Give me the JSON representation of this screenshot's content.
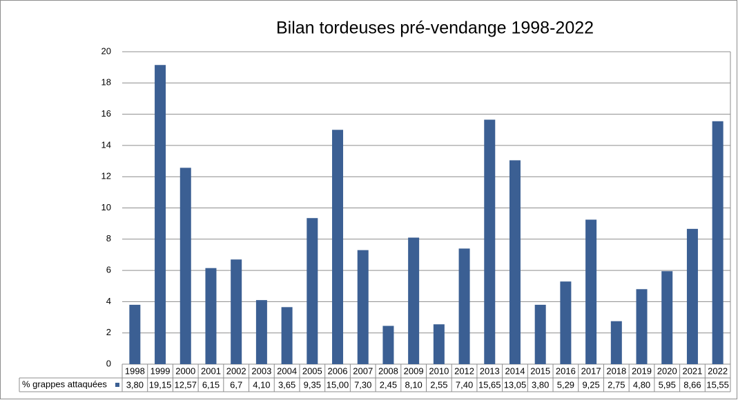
{
  "chart_data": {
    "type": "bar",
    "title": "Bilan tordeuses pré-vendange 1998-2022",
    "categories": [
      "1998",
      "1999",
      "2000",
      "2001",
      "2002",
      "2003",
      "2004",
      "2005",
      "2006",
      "2007",
      "2008",
      "2009",
      "2010",
      "2012",
      "2013",
      "2014",
      "2015",
      "2016",
      "2017",
      "2018",
      "2019",
      "2020",
      "2021",
      "2022"
    ],
    "series": [
      {
        "name": "% grappes attaquées",
        "color": "#3b5f93",
        "values": [
          3.8,
          19.15,
          12.57,
          6.15,
          6.7,
          4.1,
          3.65,
          9.35,
          15.0,
          7.3,
          2.45,
          8.1,
          2.55,
          7.4,
          15.65,
          13.05,
          3.8,
          5.29,
          9.25,
          2.75,
          4.8,
          5.95,
          8.66,
          15.55
        ],
        "value_labels": [
          "3,80",
          "19,15",
          "12,57",
          "6,15",
          "6,7",
          "4,10",
          "3,65",
          "9,35",
          "15,00",
          "7,30",
          "2,45",
          "8,10",
          "2,55",
          "7,40",
          "15,65",
          "13,05",
          "3,80",
          "5,29",
          "9,25",
          "2,75",
          "4,80",
          "5,95",
          "8,66",
          "15,55"
        ]
      }
    ],
    "ylim": [
      0,
      20
    ],
    "yticks": [
      0,
      2,
      4,
      6,
      8,
      10,
      12,
      14,
      16,
      18,
      20
    ],
    "grid": true
  }
}
